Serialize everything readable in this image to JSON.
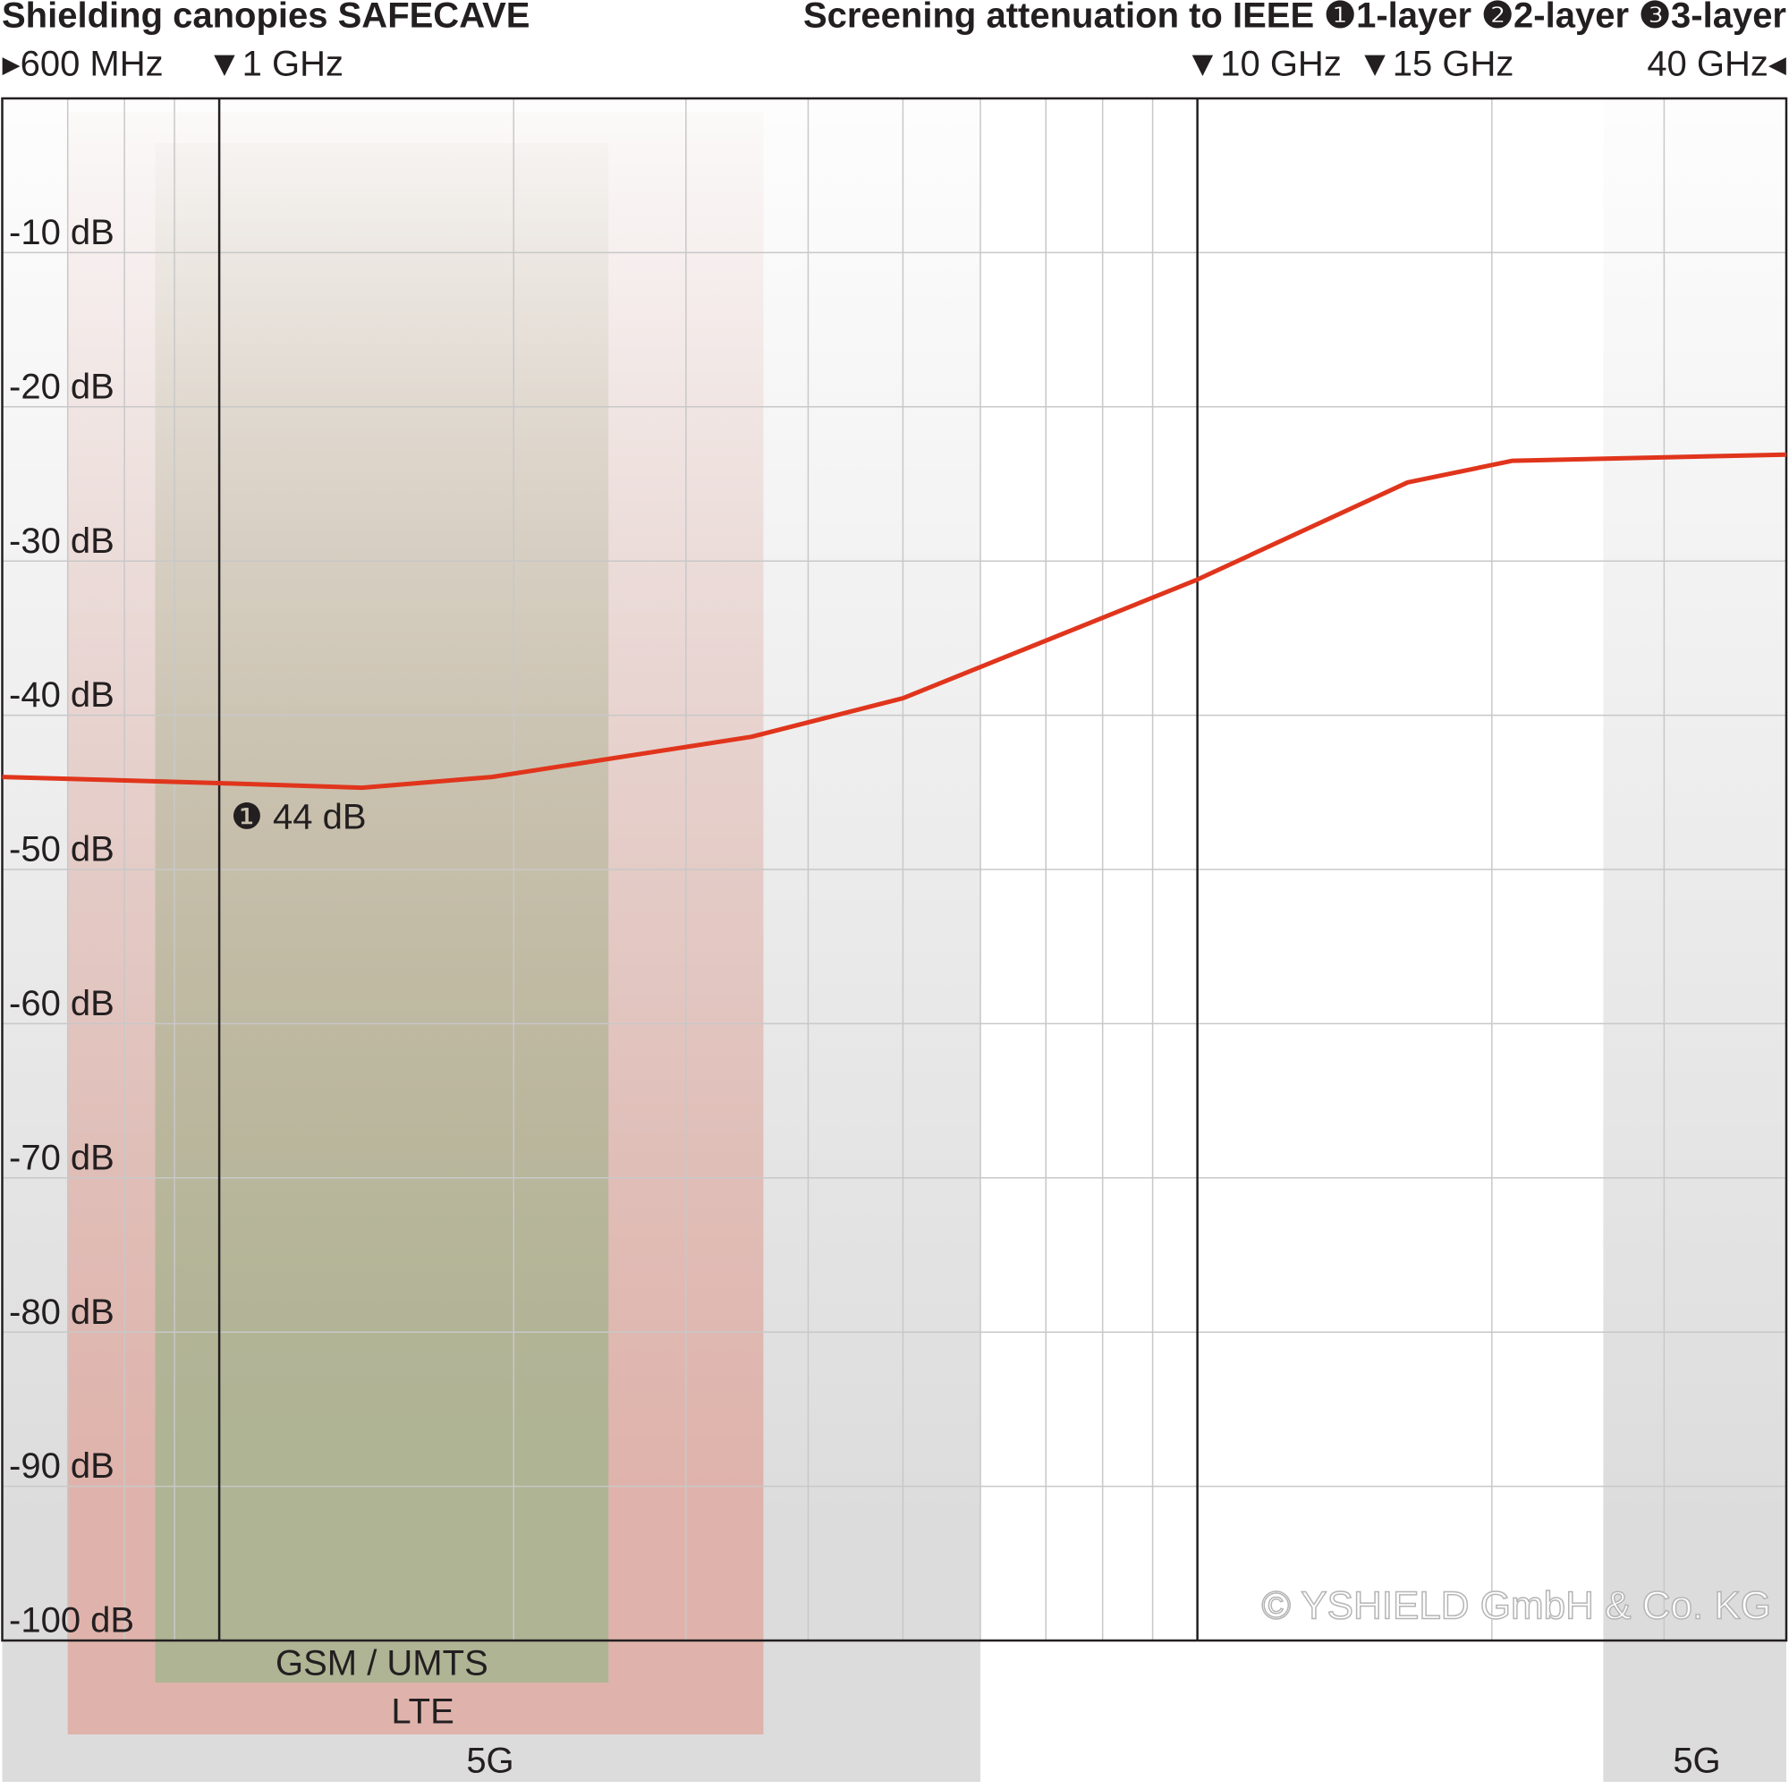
{
  "chart_data": {
    "type": "line",
    "title": "Shielding canopies SAFECAVE",
    "subtitle": "Screening attenuation to IEEE ❶1-layer ❷2-layer ❸3-layer",
    "x": [
      0.6,
      1,
      1.4,
      1.9,
      3.5,
      5,
      10,
      16.4,
      21,
      40
    ],
    "series": [
      {
        "name": "❶1-layer",
        "color": "#e0351c",
        "values": [
          -44,
          -44.4,
          -44.7,
          -44,
          -41.4,
          -38.9,
          -31.2,
          -24.9,
          -23.5,
          -23.1
        ]
      }
    ],
    "xlim": [
      0.6,
      40
    ],
    "xscale": "log",
    "xticks": [
      {
        "value": 0.6,
        "label": "▸600 MHz"
      },
      {
        "value": 1,
        "label": "▼1 GHz"
      },
      {
        "value": 10,
        "label": "▼10 GHz"
      },
      {
        "value": 15,
        "label": "▼15 GHz"
      },
      {
        "value": 40,
        "label": "40 GHz◂"
      }
    ],
    "xgrid": [
      0.7,
      0.8,
      0.9,
      2,
      3,
      4,
      5,
      6,
      7,
      8,
      9,
      20,
      30
    ],
    "reference_lines": [
      1,
      10
    ],
    "ylim": [
      -100,
      0
    ],
    "yticks": [
      {
        "value": -10,
        "label": "-10 dB"
      },
      {
        "value": -20,
        "label": "-20 dB"
      },
      {
        "value": -30,
        "label": "-30 dB"
      },
      {
        "value": -40,
        "label": "-40 dB"
      },
      {
        "value": -50,
        "label": "-50 dB"
      },
      {
        "value": -60,
        "label": "-60 dB"
      },
      {
        "value": -70,
        "label": "-70 dB"
      },
      {
        "value": -80,
        "label": "-80 dB"
      },
      {
        "value": -90,
        "label": "-90 dB"
      },
      {
        "value": -100,
        "label": "-100 dB"
      }
    ],
    "grid": true,
    "bands": [
      {
        "name": "5G",
        "from": 0.6,
        "to": 6,
        "color": "#dcdcdc"
      },
      {
        "name": "5G",
        "from": 26,
        "to": 40,
        "color": "#dcdcdc"
      },
      {
        "name": "LTE",
        "from": 0.7,
        "to": 3.6,
        "color": "#dfb3ab"
      },
      {
        "name": "GSM / UMTS",
        "from": 0.86,
        "to": 2.5,
        "color": "#aeb494"
      }
    ],
    "annotation": "❶ 44 dB",
    "copyright": "© YSHIELD GmbH & Co. KG"
  }
}
